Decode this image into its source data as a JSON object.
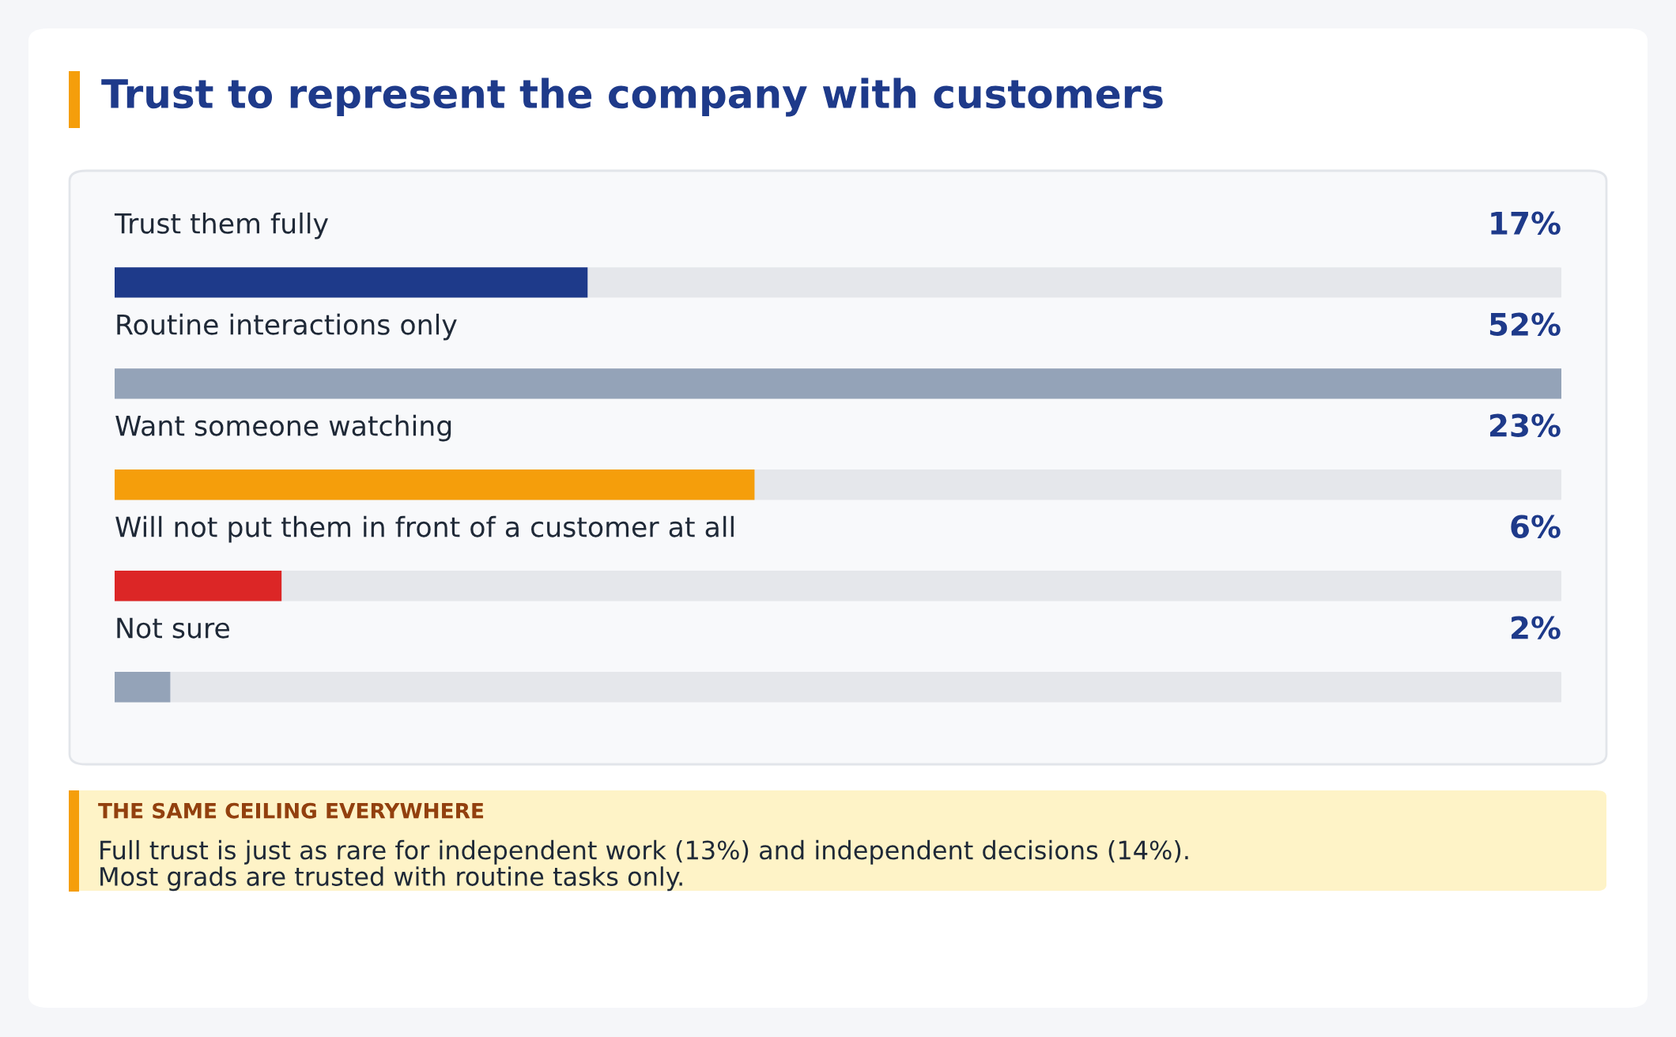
{
  "chart_data": {
    "type": "bar",
    "orientation": "horizontal",
    "title": "Trust to represent the company with customers",
    "categories": [
      "Trust them fully",
      "Routine interactions only",
      "Want someone watching",
      "Will not put them in front of a customer at all",
      "Not sure"
    ],
    "values": [
      17,
      52,
      23,
      6,
      2
    ],
    "colors": [
      "#1e3a8a",
      "#94a3b8",
      "#f59e0b",
      "#dc2626",
      "#94a3b8"
    ],
    "value_labels": [
      "17%",
      "52%",
      "23%",
      "6%",
      "2%"
    ],
    "annotations": [
      "THE SAME CEILING EVERYWHERE",
      "Full trust is just as rare for independent work (13%) and independent decisions (14%).\nMost grads are trusted with routine tasks only."
    ],
    "legend": false
  }
}
